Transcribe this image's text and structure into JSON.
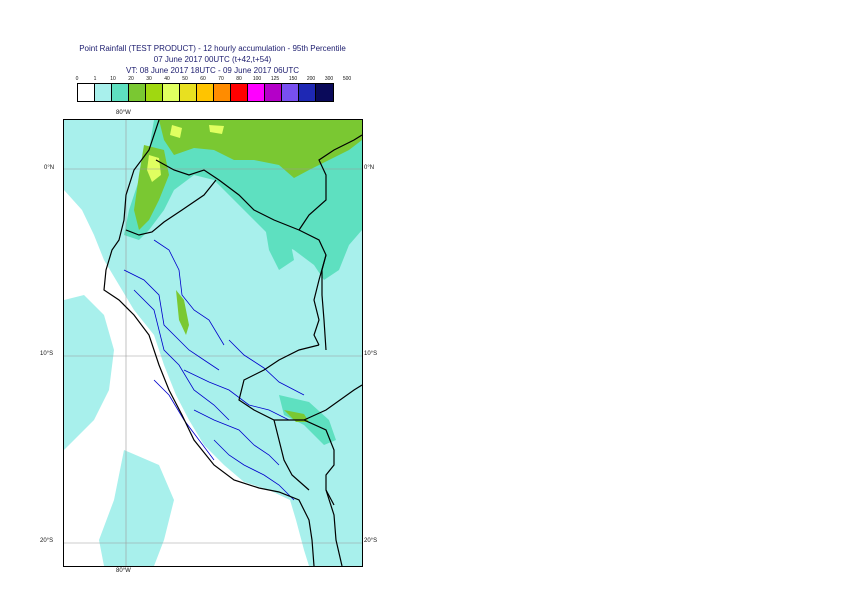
{
  "title": {
    "line1": "Point Rainfall (TEST PRODUCT) - 12 hourly accumulation - 95th Percentile",
    "line2": "07 June 2017 00UTC (t+42,t+54)",
    "line3": "VT: 08 June 2017 18UTC - 09 June 2017 06UTC"
  },
  "legend": {
    "labels": [
      "0",
      "1",
      "10",
      "20",
      "30",
      "40",
      "50",
      "60",
      "70",
      "80",
      "100",
      "125",
      "150",
      "200",
      "300",
      "500"
    ],
    "colors": [
      "#ffffff",
      "#a8f0ec",
      "#5ee0c0",
      "#7ac832",
      "#a0d810",
      "#e0ff60",
      "#e8e020",
      "#ffc400",
      "#ff8c00",
      "#ff0000",
      "#ff00ff",
      "#b400c8",
      "#7850f0",
      "#1e28b4",
      "#0a0a5a"
    ]
  },
  "axes": {
    "lon_top": "80°W",
    "lon_bottom": "80°W",
    "lat_left": [
      "0°N",
      "10°S",
      "20°S"
    ],
    "lat_right": [
      "0°N",
      "10°S",
      "20°S"
    ]
  },
  "map_colors": {
    "ocean_light": "#a8f0ec",
    "rain_10": "#5ee0c0",
    "rain_20": "#7ac832",
    "rain_30": "#a0d810",
    "rain_40": "#e0ff60",
    "dry": "#ffffff",
    "border": "#000000",
    "provinces": "#0000cc",
    "graticule": "#9a9a9a"
  }
}
